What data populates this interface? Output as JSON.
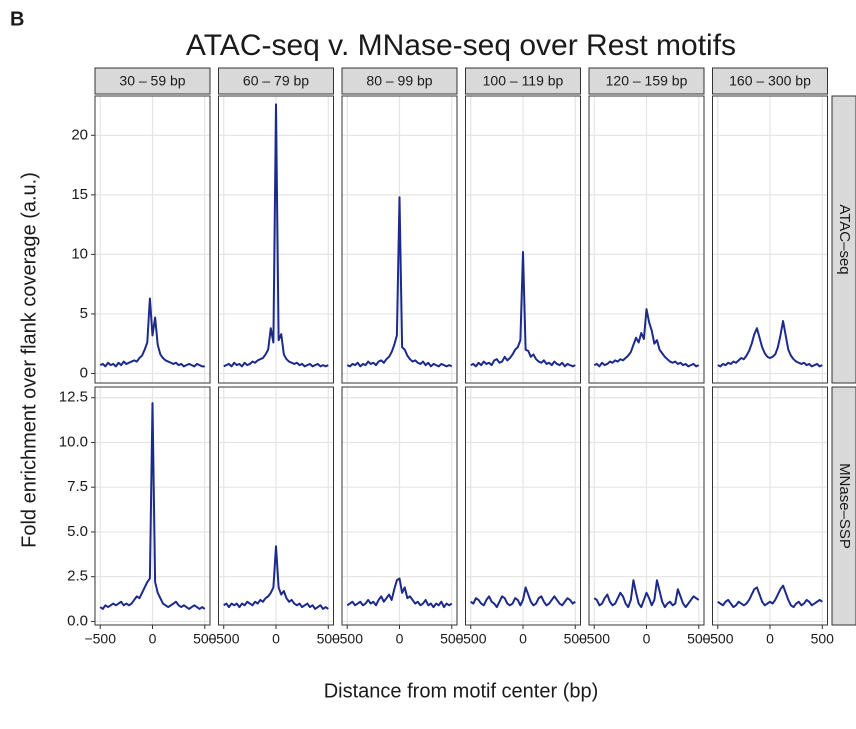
{
  "chart_data": {
    "type": "line",
    "panel_tag": "B",
    "title": "ATAC-seq v. MNase-seq over Rest motifs",
    "xlabel": "Distance from motif center (bp)",
    "ylabel": "Fold enrichment over flank coverage (a.u.)",
    "columns": [
      "30 – 59 bp",
      "60 – 79 bp",
      "80 – 99 bp",
      "100 – 119 bp",
      "120 – 159 bp",
      "160 – 300 bp"
    ],
    "rows": [
      "ATAC–seq",
      "MNase–SSP"
    ],
    "color": "#1c2a8c",
    "grid": true,
    "x": [
      -500,
      -475,
      -450,
      -425,
      -400,
      -375,
      -350,
      -325,
      -300,
      -275,
      -250,
      -225,
      -200,
      -175,
      -150,
      -125,
      -100,
      -75,
      -50,
      -25,
      0,
      25,
      50,
      75,
      100,
      125,
      150,
      175,
      200,
      225,
      250,
      275,
      300,
      325,
      350,
      375,
      400,
      425,
      450,
      475,
      500
    ],
    "xlim": [
      -550,
      550
    ],
    "xticks": [
      {
        "value": -500,
        "label": "−500"
      },
      0,
      500
    ],
    "panels": [
      {
        "ylim": [
          -0.8,
          23.3
        ],
        "yticks": [
          0,
          5,
          10,
          15,
          20
        ],
        "values": [
          [
            0.7,
            0.8,
            0.6,
            0.9,
            0.7,
            0.8,
            0.6,
            0.9,
            0.7,
            1.0,
            0.8,
            0.9,
            1.0,
            1.1,
            1.0,
            1.3,
            1.5,
            2.0,
            2.6,
            6.3,
            3.2,
            4.7,
            2.4,
            1.6,
            1.3,
            1.1,
            1.0,
            0.9,
            0.8,
            0.9,
            0.7,
            0.8,
            0.6,
            0.7,
            0.8,
            0.7,
            0.6,
            0.8,
            0.7,
            0.6,
            0.6
          ],
          [
            0.6,
            0.7,
            0.8,
            0.6,
            0.9,
            0.7,
            0.8,
            0.6,
            0.9,
            0.7,
            0.8,
            1.0,
            0.9,
            1.1,
            1.2,
            1.3,
            1.6,
            2.0,
            3.8,
            2.6,
            22.6,
            2.8,
            3.3,
            1.6,
            1.2,
            1.0,
            0.9,
            0.8,
            0.9,
            0.7,
            0.8,
            0.6,
            0.7,
            0.8,
            0.6,
            0.7,
            0.8,
            0.6,
            0.7,
            0.6,
            0.7
          ],
          [
            0.7,
            0.6,
            0.8,
            0.7,
            0.9,
            0.6,
            0.8,
            0.7,
            1.0,
            0.8,
            0.9,
            0.7,
            1.0,
            1.1,
            0.9,
            1.2,
            1.4,
            1.8,
            2.4,
            3.2,
            14.8,
            2.2,
            2.0,
            1.5,
            1.2,
            1.0,
            1.1,
            0.9,
            0.8,
            1.0,
            0.7,
            0.9,
            0.6,
            0.8,
            0.7,
            0.6,
            0.8,
            0.7,
            0.6,
            0.7,
            0.6
          ],
          [
            0.7,
            0.8,
            0.6,
            0.9,
            0.7,
            1.0,
            0.8,
            0.9,
            0.7,
            1.1,
            1.2,
            0.9,
            1.0,
            1.4,
            1.1,
            1.3,
            1.6,
            2.0,
            2.2,
            2.8,
            10.2,
            2.0,
            1.9,
            1.4,
            1.6,
            1.2,
            1.0,
            0.9,
            1.1,
            0.8,
            0.9,
            0.7,
            1.0,
            0.8,
            0.7,
            0.9,
            0.6,
            0.8,
            0.7,
            0.6,
            0.7
          ],
          [
            0.7,
            0.8,
            0.6,
            0.9,
            0.7,
            0.8,
            1.0,
            0.9,
            1.1,
            1.0,
            1.2,
            1.1,
            1.3,
            1.5,
            1.8,
            2.4,
            3.0,
            2.6,
            3.4,
            2.9,
            5.4,
            4.3,
            3.6,
            2.5,
            2.8,
            2.0,
            1.7,
            1.4,
            1.2,
            1.0,
            0.9,
            1.0,
            0.8,
            0.9,
            0.7,
            0.8,
            0.6,
            0.7,
            0.8,
            0.6,
            0.7
          ],
          [
            0.7,
            0.6,
            0.8,
            0.7,
            0.9,
            0.8,
            1.0,
            0.9,
            1.1,
            1.3,
            1.2,
            1.5,
            1.9,
            2.5,
            3.3,
            3.8,
            3.0,
            2.2,
            1.7,
            1.4,
            1.3,
            1.4,
            1.6,
            2.2,
            3.2,
            4.4,
            3.2,
            2.0,
            1.5,
            1.2,
            1.0,
            0.9,
            0.8,
            0.9,
            0.7,
            0.8,
            0.6,
            0.7,
            0.8,
            0.6,
            0.7
          ]
        ]
      },
      {
        "ylim": [
          -0.2,
          13.1
        ],
        "yticks": [
          {
            "value": 0,
            "label": "0.0"
          },
          2.5,
          {
            "value": 5,
            "label": "5.0"
          },
          7.5,
          {
            "value": 10,
            "label": "10.0"
          },
          12.5
        ],
        "values": [
          [
            0.8,
            0.7,
            0.9,
            0.8,
            0.9,
            1.0,
            0.9,
            1.0,
            1.1,
            0.9,
            1.0,
            0.9,
            1.0,
            1.2,
            1.4,
            1.3,
            1.6,
            1.9,
            2.2,
            2.4,
            12.2,
            2.2,
            1.6,
            1.3,
            1.0,
            0.9,
            0.8,
            0.9,
            1.0,
            1.1,
            0.9,
            0.8,
            0.9,
            0.8,
            0.7,
            0.8,
            0.9,
            0.8,
            0.7,
            0.8,
            0.7
          ],
          [
            0.9,
            1.0,
            0.8,
            1.0,
            0.9,
            1.0,
            0.8,
            1.0,
            0.9,
            1.1,
            1.0,
            0.9,
            1.1,
            1.0,
            1.2,
            1.1,
            1.3,
            1.4,
            1.6,
            1.9,
            4.2,
            1.9,
            1.5,
            1.7,
            1.3,
            1.1,
            1.2,
            1.0,
            0.9,
            1.0,
            0.8,
            0.9,
            1.0,
            0.8,
            0.9,
            0.7,
            0.8,
            0.9,
            0.7,
            0.8,
            0.7
          ],
          [
            0.9,
            1.0,
            1.1,
            0.9,
            1.0,
            1.1,
            0.9,
            1.0,
            1.2,
            1.0,
            1.1,
            0.9,
            1.2,
            1.4,
            1.1,
            1.3,
            1.5,
            1.2,
            1.8,
            2.3,
            2.4,
            1.6,
            1.9,
            1.3,
            1.4,
            1.2,
            1.0,
            1.1,
            0.9,
            1.0,
            1.2,
            0.9,
            1.0,
            0.8,
            1.0,
            0.9,
            1.1,
            0.8,
            1.0,
            0.9,
            1.0
          ],
          [
            1.1,
            1.0,
            1.3,
            1.2,
            1.0,
            0.9,
            1.2,
            1.4,
            1.1,
            1.0,
            0.8,
            1.1,
            1.4,
            1.3,
            1.0,
            0.9,
            1.0,
            1.3,
            1.2,
            0.9,
            1.2,
            1.9,
            1.5,
            1.1,
            0.9,
            1.0,
            1.3,
            1.4,
            1.1,
            0.9,
            1.0,
            1.2,
            1.4,
            1.2,
            1.0,
            0.9,
            1.1,
            1.3,
            1.2,
            1.0,
            1.1
          ],
          [
            1.3,
            1.2,
            0.9,
            1.0,
            1.3,
            1.5,
            1.1,
            0.9,
            1.0,
            1.3,
            1.6,
            1.4,
            1.0,
            0.8,
            1.2,
            2.3,
            1.6,
            1.0,
            0.8,
            1.2,
            1.6,
            1.3,
            0.9,
            1.2,
            2.3,
            1.7,
            1.1,
            0.8,
            1.0,
            1.1,
            0.9,
            1.0,
            1.8,
            1.4,
            1.0,
            0.8,
            1.0,
            1.2,
            1.4,
            1.3,
            1.2
          ],
          [
            1.1,
            1.0,
            0.9,
            1.1,
            1.2,
            1.0,
            0.8,
            0.9,
            1.1,
            1.0,
            0.9,
            1.0,
            1.2,
            1.5,
            1.8,
            1.9,
            1.5,
            1.1,
            0.9,
            1.0,
            1.1,
            1.0,
            1.2,
            1.5,
            1.8,
            2.0,
            1.6,
            1.2,
            0.9,
            0.8,
            1.0,
            1.1,
            0.9,
            1.0,
            1.2,
            1.1,
            0.9,
            1.0,
            1.1,
            1.2,
            1.1
          ]
        ]
      }
    ]
  }
}
